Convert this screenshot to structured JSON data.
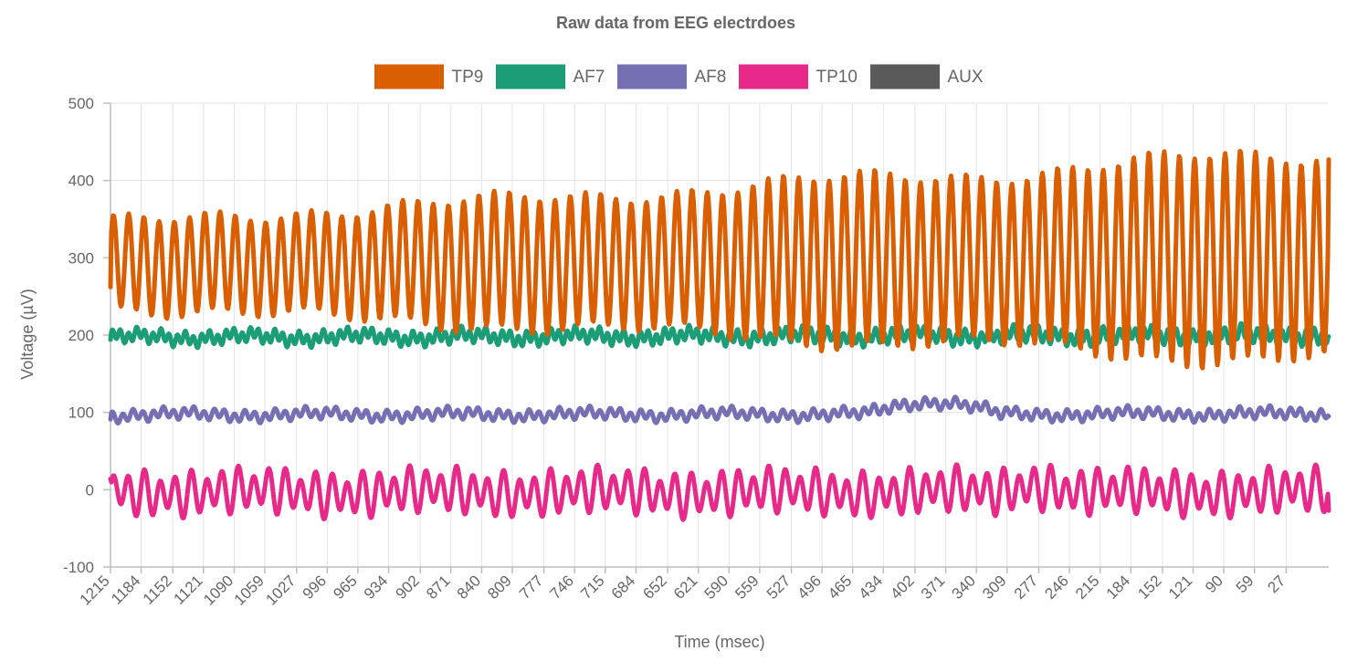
{
  "chart_data": {
    "type": "line",
    "title": "Raw data from EEG electrdoes",
    "xlabel": "Time (msec)",
    "ylabel": "Voltage (µV)",
    "ylim": [
      -100,
      500
    ],
    "yticks": [
      "500",
      "400",
      "300",
      "200",
      "100",
      "0",
      "-100"
    ],
    "xticks": [
      "1215",
      "1184",
      "1152",
      "1121",
      "1090",
      "1059",
      "1027",
      "996",
      "965",
      "934",
      "902",
      "871",
      "840",
      "809",
      "777",
      "746",
      "715",
      "684",
      "652",
      "621",
      "590",
      "559",
      "527",
      "496",
      "465",
      "434",
      "402",
      "371",
      "340",
      "309",
      "277",
      "246",
      "215",
      "184",
      "152",
      "121",
      "90",
      "59",
      "27"
    ],
    "x_range_msec": [
      1215,
      -16
    ],
    "grid": true,
    "legend_position": "top",
    "series": [
      {
        "name": "TP9",
        "color": "#d95f02",
        "baseline_start": 290,
        "baseline_end": 300,
        "amplitude_start": 55,
        "amplitude_end": 135,
        "cycles": 80,
        "start_value": 262,
        "end_value": 427
      },
      {
        "name": "AF7",
        "color": "#1b9e77",
        "baseline_start": 197,
        "baseline_end": 200,
        "amplitude_start": 7,
        "amplitude_end": 9,
        "cycles": 150,
        "start_value": 194,
        "end_value": 198
      },
      {
        "name": "AF8",
        "color": "#7570b3",
        "baseline_start": 97,
        "baseline_end": 98,
        "amplitude_start": 6,
        "amplitude_end": 6,
        "cycles": 120,
        "start_value": 91,
        "end_value": 95
      },
      {
        "name": "TP10",
        "color": "#e7298a",
        "baseline_start": -3,
        "baseline_end": -3,
        "amplitude_start": 24,
        "amplitude_end": 24,
        "cycles": 78,
        "start_value": 14,
        "end_value": -27
      },
      {
        "name": "AUX",
        "color": "#5a5a5a",
        "hidden_in_plot": true
      }
    ]
  }
}
